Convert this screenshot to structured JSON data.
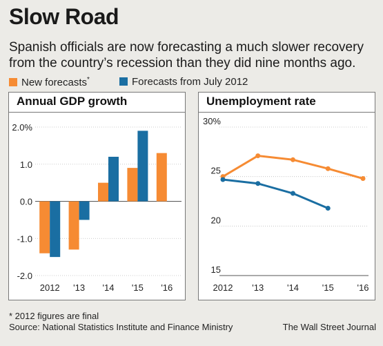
{
  "header": {
    "title": "Slow Road",
    "subtitle": "Spanish officials are now forecasting a much slower recovery from the country’s recession than they did nine months ago."
  },
  "legend": [
    {
      "label": "New forecasts",
      "marker": "*",
      "color": "#f68b33"
    },
    {
      "label": "Forecasts from July 2012",
      "color": "#1a6ea2"
    }
  ],
  "footnote": "* 2012 figures are final",
  "source": "Source: National Statistics Institute and Finance Ministry",
  "credit": "The Wall Street Journal",
  "chart_data": [
    {
      "type": "bar",
      "title": "Annual GDP growth",
      "categories": [
        "2012",
        "'13",
        "'14",
        "'15",
        "'16"
      ],
      "series": [
        {
          "name": "New forecasts",
          "color": "#f68b33",
          "values": [
            -1.4,
            -1.3,
            0.5,
            0.9,
            1.3
          ]
        },
        {
          "name": "Forecasts from July 2012",
          "color": "#1a6ea2",
          "values": [
            -1.5,
            -0.5,
            1.2,
            1.9,
            null
          ]
        }
      ],
      "ylim": [
        -2.0,
        2.0
      ],
      "yticks": [
        2.0,
        1.0,
        0.0,
        -1.0,
        -2.0
      ],
      "ytick_labels": [
        "2.0%",
        "1.0",
        "0.0",
        "-1.0",
        "-2.0"
      ],
      "grid": true
    },
    {
      "type": "line",
      "title": "Unemployment rate",
      "x": [
        "2012",
        "'13",
        "'14",
        "'15",
        "'16"
      ],
      "series": [
        {
          "name": "New forecasts",
          "color": "#f68b33",
          "values": [
            25.0,
            27.1,
            26.7,
            25.8,
            24.8
          ]
        },
        {
          "name": "Forecasts from July 2012",
          "color": "#1a6ea2",
          "values": [
            24.7,
            24.3,
            23.3,
            21.8,
            null
          ]
        }
      ],
      "ylim": [
        15,
        30
      ],
      "yticks": [
        30,
        25,
        20,
        15
      ],
      "ytick_labels": [
        "30%",
        "25",
        "20",
        "15"
      ],
      "grid": true
    }
  ]
}
